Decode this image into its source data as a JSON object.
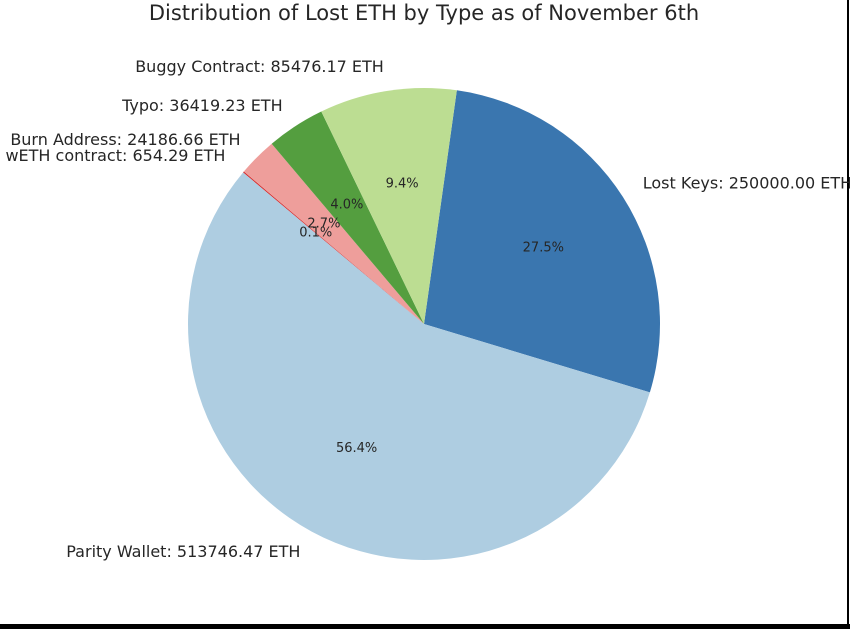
{
  "chart_data": {
    "type": "pie",
    "title": "Distribution of Lost ETH by Type as of November 6th",
    "categories": [
      "Lost Keys: 250000.00 ETH",
      "Parity Wallet: 513746.47 ETH",
      "wETH contract: 654.29 ETH",
      "Burn Address: 24186.66 ETH",
      "Typo: 36419.23 ETH",
      "Buggy Contract: 85476.17 ETH"
    ],
    "values": [
      250000.0,
      513746.47,
      654.29,
      24186.66,
      36419.23,
      85476.17
    ],
    "value_labels": [
      "27.5%",
      "56.4%",
      "0.1%",
      "2.7%",
      "4.0%",
      "9.4%"
    ],
    "colors": [
      "#3a76af",
      "#aecde1",
      "#d62728",
      "#ee9e9b",
      "#549e3f",
      "#bcdd92"
    ]
  }
}
